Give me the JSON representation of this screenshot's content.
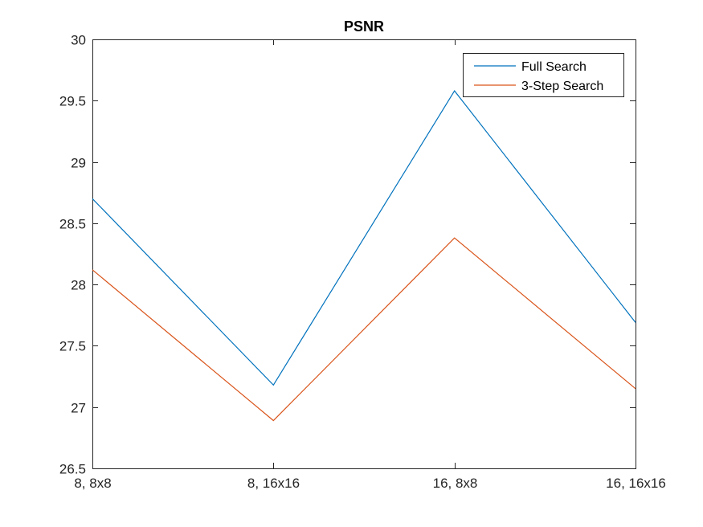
{
  "chart_data": {
    "type": "line",
    "title": "PSNR",
    "xlabel": "",
    "ylabel": "",
    "categories": [
      "8, 8x8",
      "8, 16x16",
      "16, 8x8",
      "16, 16x16"
    ],
    "ylim": [
      26.5,
      30
    ],
    "yticks": [
      "26.5",
      "27",
      "27.5",
      "28",
      "28.5",
      "29",
      "29.5",
      "30"
    ],
    "grid": false,
    "legend_position": "top-right",
    "series": [
      {
        "name": "Full Search",
        "color": "#0072BD",
        "values": [
          28.7,
          27.18,
          29.58,
          27.69
        ]
      },
      {
        "name": "3-Step Search",
        "color": "#D95319",
        "values": [
          28.12,
          26.89,
          28.38,
          27.15
        ]
      }
    ]
  }
}
